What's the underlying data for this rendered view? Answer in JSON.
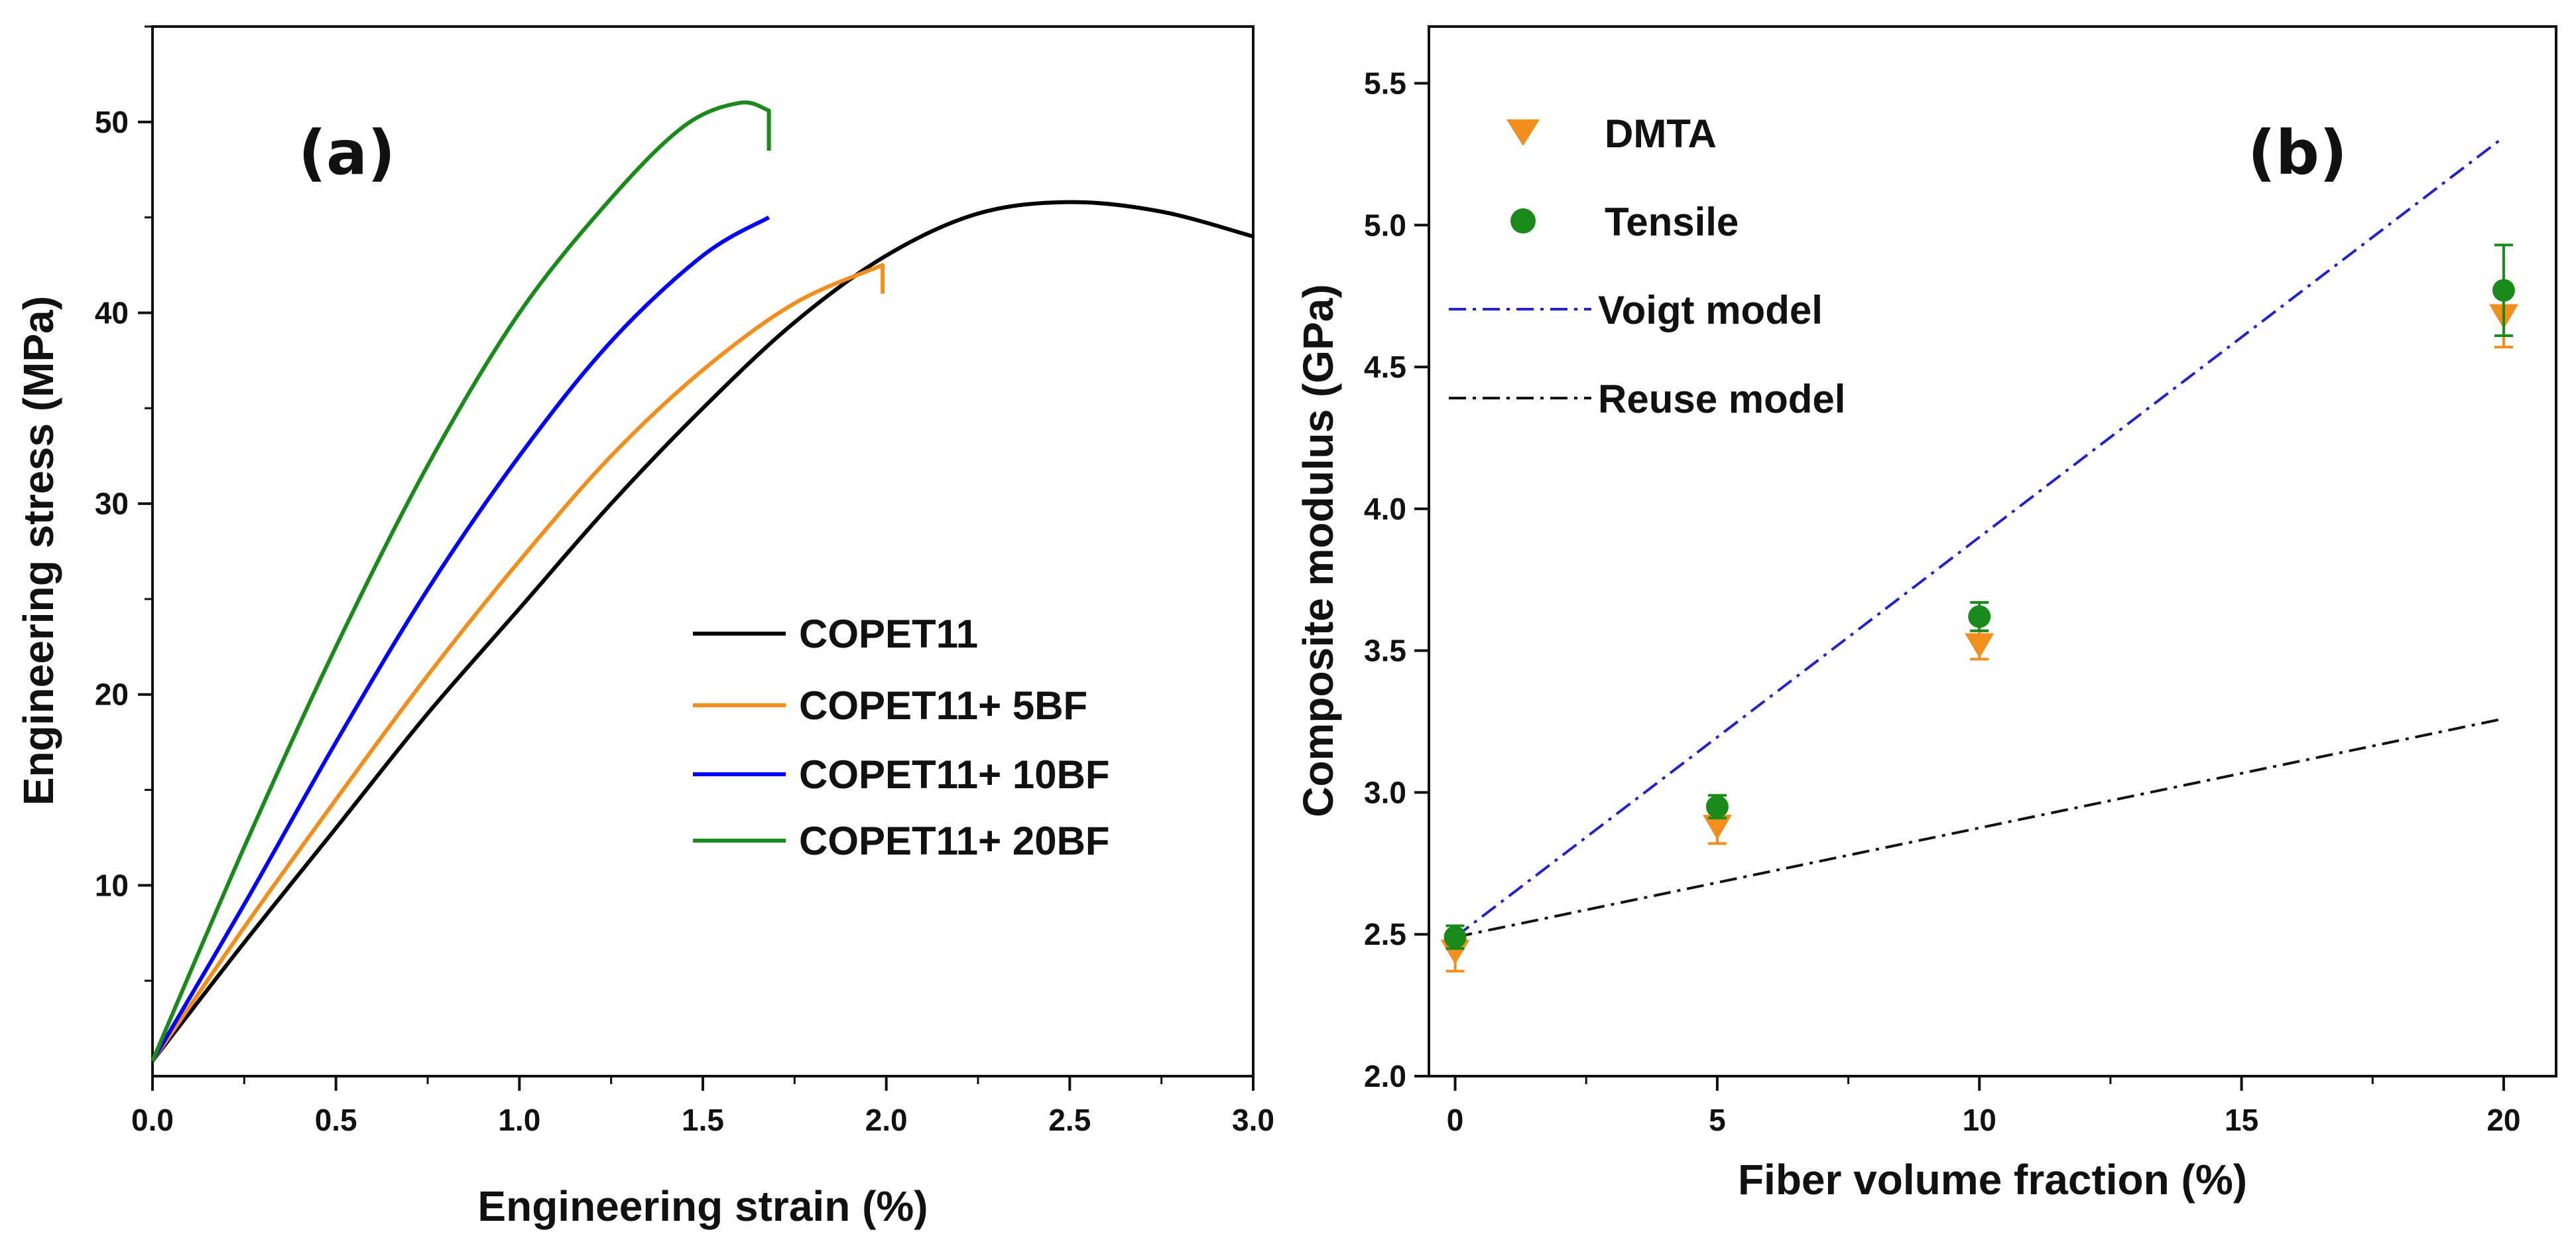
{
  "chart_data": [
    {
      "panel": "(a)",
      "type": "line",
      "xlabel": "Engineering strain (%)",
      "ylabel": "Engineering stress (MPa)",
      "xlim": [
        0,
        3.0
      ],
      "ylim": [
        0,
        55
      ],
      "xticks": [
        "0.0",
        "0.5",
        "1.0",
        "1.5",
        "2.0",
        "2.5",
        "3.0"
      ],
      "yticks": [
        "10",
        "20",
        "30",
        "40",
        "50"
      ],
      "legend_position": "center-right",
      "series": [
        {
          "name": "COPET11",
          "color": "#000000",
          "x": [
            0,
            0.25,
            0.5,
            0.75,
            1.0,
            1.25,
            1.5,
            1.75,
            2.0,
            2.25,
            2.5,
            2.75,
            3.0
          ],
          "y": [
            0.8,
            7,
            13,
            19,
            24.5,
            30,
            35,
            39.5,
            43,
            45.2,
            45.8,
            45.3,
            44
          ]
        },
        {
          "name": "COPET11+ 5BF",
          "color": "#f28e1c",
          "x": [
            0,
            0.25,
            0.5,
            0.75,
            1.0,
            1.25,
            1.5,
            1.75,
            1.99,
            1.99
          ],
          "y": [
            0.8,
            7.8,
            14.5,
            21,
            27,
            32.5,
            37,
            40.5,
            42.5,
            41
          ]
        },
        {
          "name": "COPET11+ 10BF",
          "color": "#0000ff",
          "x": [
            0,
            0.25,
            0.5,
            0.75,
            1.0,
            1.25,
            1.5,
            1.68
          ],
          "y": [
            0.8,
            9,
            17.5,
            25.5,
            32.5,
            38.5,
            43,
            45
          ]
        },
        {
          "name": "COPET11+ 20BF",
          "color": "#1a8a1a",
          "x": [
            0,
            0.25,
            0.5,
            0.75,
            1.0,
            1.25,
            1.45,
            1.6,
            1.68,
            1.68
          ],
          "y": [
            0.8,
            12,
            22.5,
            32,
            40,
            46,
            49.8,
            51,
            50.6,
            48.5
          ]
        }
      ]
    },
    {
      "panel": "(b)",
      "type": "scatter",
      "xlabel": "Fiber volume fraction (%)",
      "ylabel": "Composite modulus (GPa)",
      "xlim": [
        -0.5,
        21
      ],
      "ylim": [
        2.0,
        5.7
      ],
      "xticks": [
        "0",
        "5",
        "10",
        "15",
        "20"
      ],
      "yticks": [
        "2.0",
        "2.5",
        "3.0",
        "3.5",
        "4.0",
        "4.5",
        "5.0",
        "5.5"
      ],
      "legend_position": "top-left",
      "series": [
        {
          "name": "DMTA",
          "marker": "triangle-down",
          "color": "#f28e1c",
          "x": [
            0,
            5,
            10,
            20
          ],
          "y": [
            2.44,
            2.88,
            3.52,
            4.68
          ],
          "err": [
            0.07,
            0.06,
            0.05,
            0.11
          ]
        },
        {
          "name": "Tensile",
          "marker": "circle",
          "color": "#1a8a1a",
          "x": [
            0,
            5,
            10,
            20
          ],
          "y": [
            2.49,
            2.95,
            3.62,
            4.77
          ],
          "err": [
            0.04,
            0.04,
            0.05,
            0.16
          ]
        },
        {
          "name": "Voigt model",
          "style": "dash-dot",
          "color": "#2222cc",
          "x": [
            0,
            20
          ],
          "y": [
            2.49,
            5.31
          ]
        },
        {
          "name": "Reuse model",
          "style": "dash-dot",
          "color": "#111111",
          "x": [
            0,
            20
          ],
          "y": [
            2.49,
            3.26
          ]
        }
      ]
    }
  ]
}
